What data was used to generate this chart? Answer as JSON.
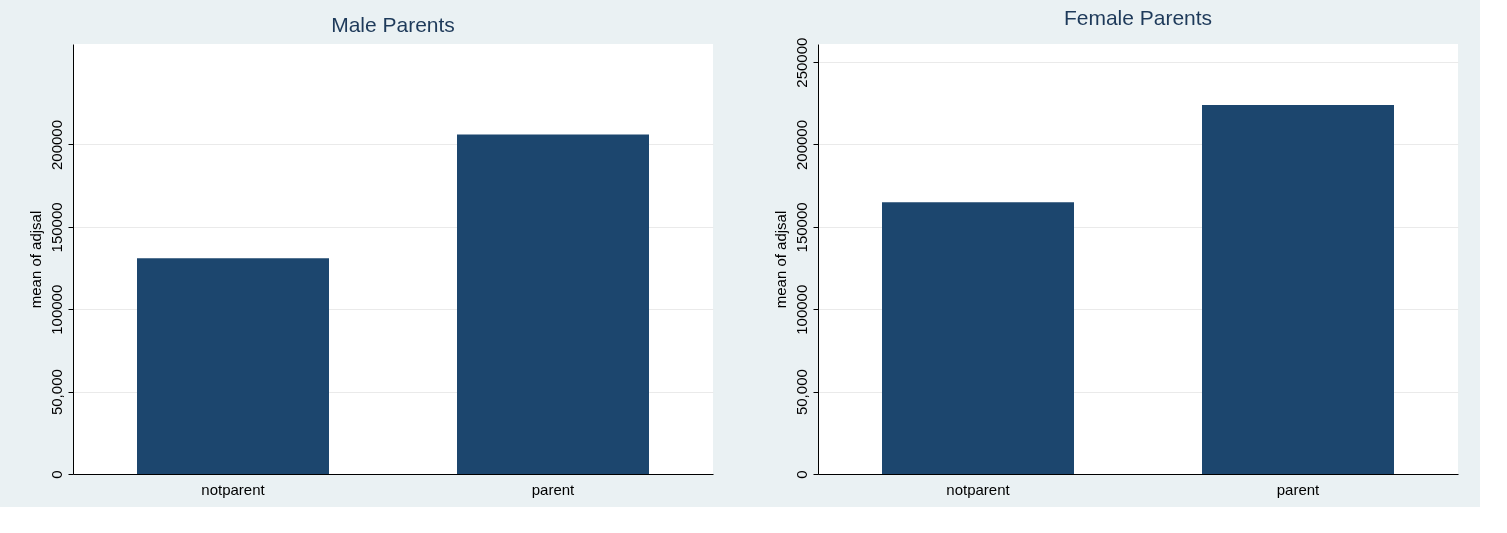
{
  "chart_data": [
    {
      "type": "bar",
      "title": "Male Parents",
      "ylabel": "mean of adjsal",
      "categories": [
        "notparent",
        "parent"
      ],
      "values": [
        131000,
        206000
      ],
      "color": "#1c466e",
      "ylim": [
        0,
        261000
      ],
      "yticks": [
        0,
        {
          "value": 50000,
          "label": "50,000"
        },
        100000,
        150000,
        200000
      ],
      "grid": "y"
    },
    {
      "type": "bar",
      "title": "Female Parents",
      "ylabel": "mean of adjsal",
      "categories": [
        "notparent",
        "parent"
      ],
      "values": [
        165000,
        224000
      ],
      "color": "#1c466e",
      "ylim": [
        0,
        261000
      ],
      "yticks": [
        0,
        {
          "value": 50000,
          "label": "50,000"
        },
        100000,
        150000,
        200000,
        250000
      ],
      "grid": "y"
    }
  ]
}
